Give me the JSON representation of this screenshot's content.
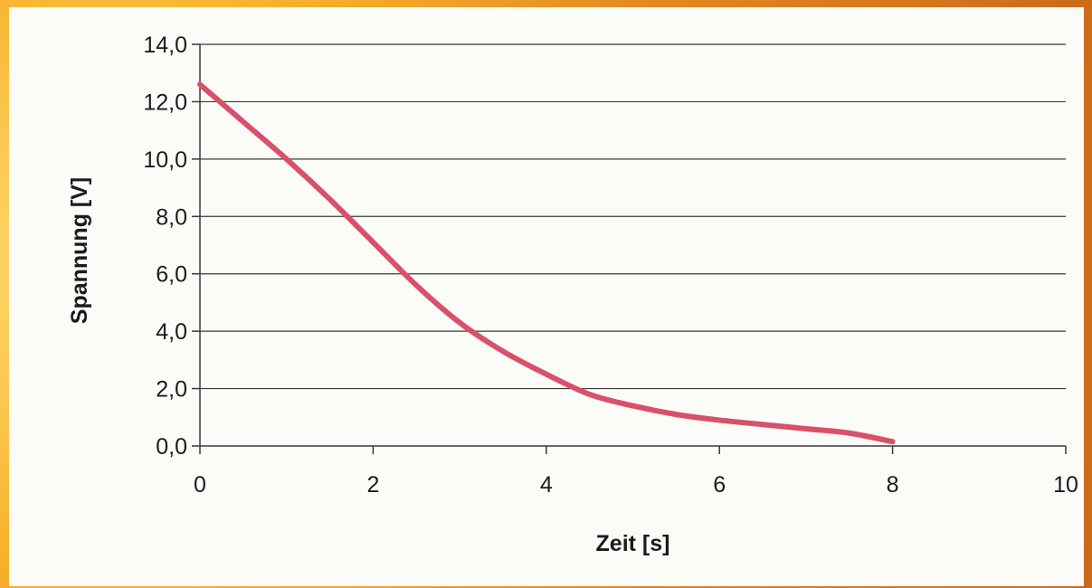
{
  "chart_data": {
    "type": "line",
    "xlabel": "Zeit [s]",
    "ylabel": "Spannung [V]",
    "xlim": [
      0,
      10
    ],
    "ylim": [
      0,
      14
    ],
    "x_ticks": [
      "0",
      "2",
      "4",
      "6",
      "8",
      "10"
    ],
    "y_ticks": [
      "0,0",
      "2,0",
      "4,0",
      "6,0",
      "8,0",
      "10,0",
      "12,0",
      "14,0"
    ],
    "grid": "horizontal",
    "legend": "none",
    "line_color": "#d9506a",
    "series": [
      {
        "x": [
          0,
          0.5,
          1,
          1.5,
          2,
          2.5,
          3,
          3.5,
          4,
          4.5,
          5,
          5.5,
          6,
          6.5,
          7,
          7.5,
          8
        ],
        "values": [
          12.6,
          11.3,
          10.0,
          8.6,
          7.1,
          5.6,
          4.3,
          3.3,
          2.5,
          1.8,
          1.4,
          1.1,
          0.9,
          0.75,
          0.6,
          0.45,
          0.15
        ]
      }
    ]
  }
}
